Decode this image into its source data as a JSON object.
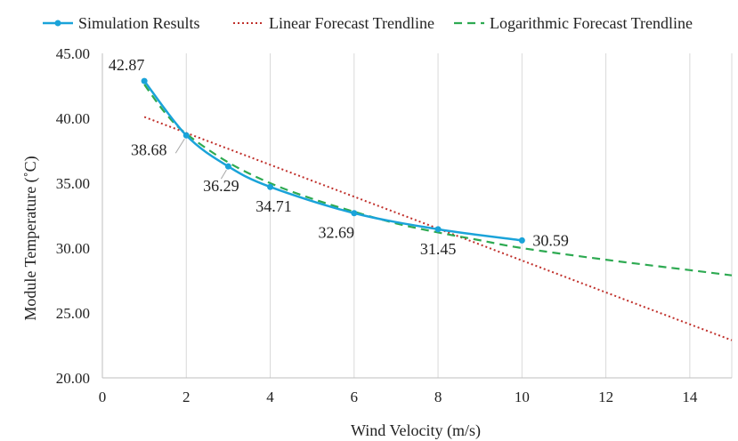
{
  "chart_data": {
    "type": "line",
    "title": "",
    "xlabel": "Wind Velocity (m/s)",
    "ylabel": "Module Temperature (˚C)",
    "xlim": [
      0,
      15
    ],
    "ylim": [
      20,
      45
    ],
    "x_ticks": [
      0,
      2,
      4,
      6,
      8,
      10,
      12,
      14
    ],
    "y_ticks": [
      "20.00",
      "25.00",
      "30.00",
      "35.00",
      "40.00",
      "45.00"
    ],
    "grid": "vertical",
    "legend_position": "top",
    "series": [
      {
        "name": "Simulation Results",
        "style": "solid-smooth-markers",
        "color": "#1aa3d9",
        "x": [
          1,
          2,
          3,
          4,
          6,
          8,
          10
        ],
        "y": [
          42.87,
          38.68,
          36.29,
          34.71,
          32.69,
          31.45,
          30.59
        ],
        "labels": [
          "42.87",
          "38.68",
          "36.29",
          "34.71",
          "32.69",
          "31.45",
          "30.59"
        ]
      },
      {
        "name": "Linear Forecast Trendline",
        "style": "dotted",
        "color": "#c0302b",
        "x": [
          1,
          15
        ],
        "y": [
          40.1,
          22.9
        ]
      },
      {
        "name": "Logarithmic Forecast Trendline",
        "style": "dashed",
        "color": "#2eaa52",
        "x": [
          1,
          1.5,
          2,
          3,
          4,
          5,
          6,
          7,
          8,
          9,
          10,
          12,
          14,
          15
        ],
        "y": [
          42.6,
          40.4,
          38.8,
          36.6,
          35.0,
          33.8,
          32.8,
          31.9,
          31.2,
          30.6,
          30.0,
          29.1,
          28.3,
          27.9
        ]
      }
    ]
  }
}
